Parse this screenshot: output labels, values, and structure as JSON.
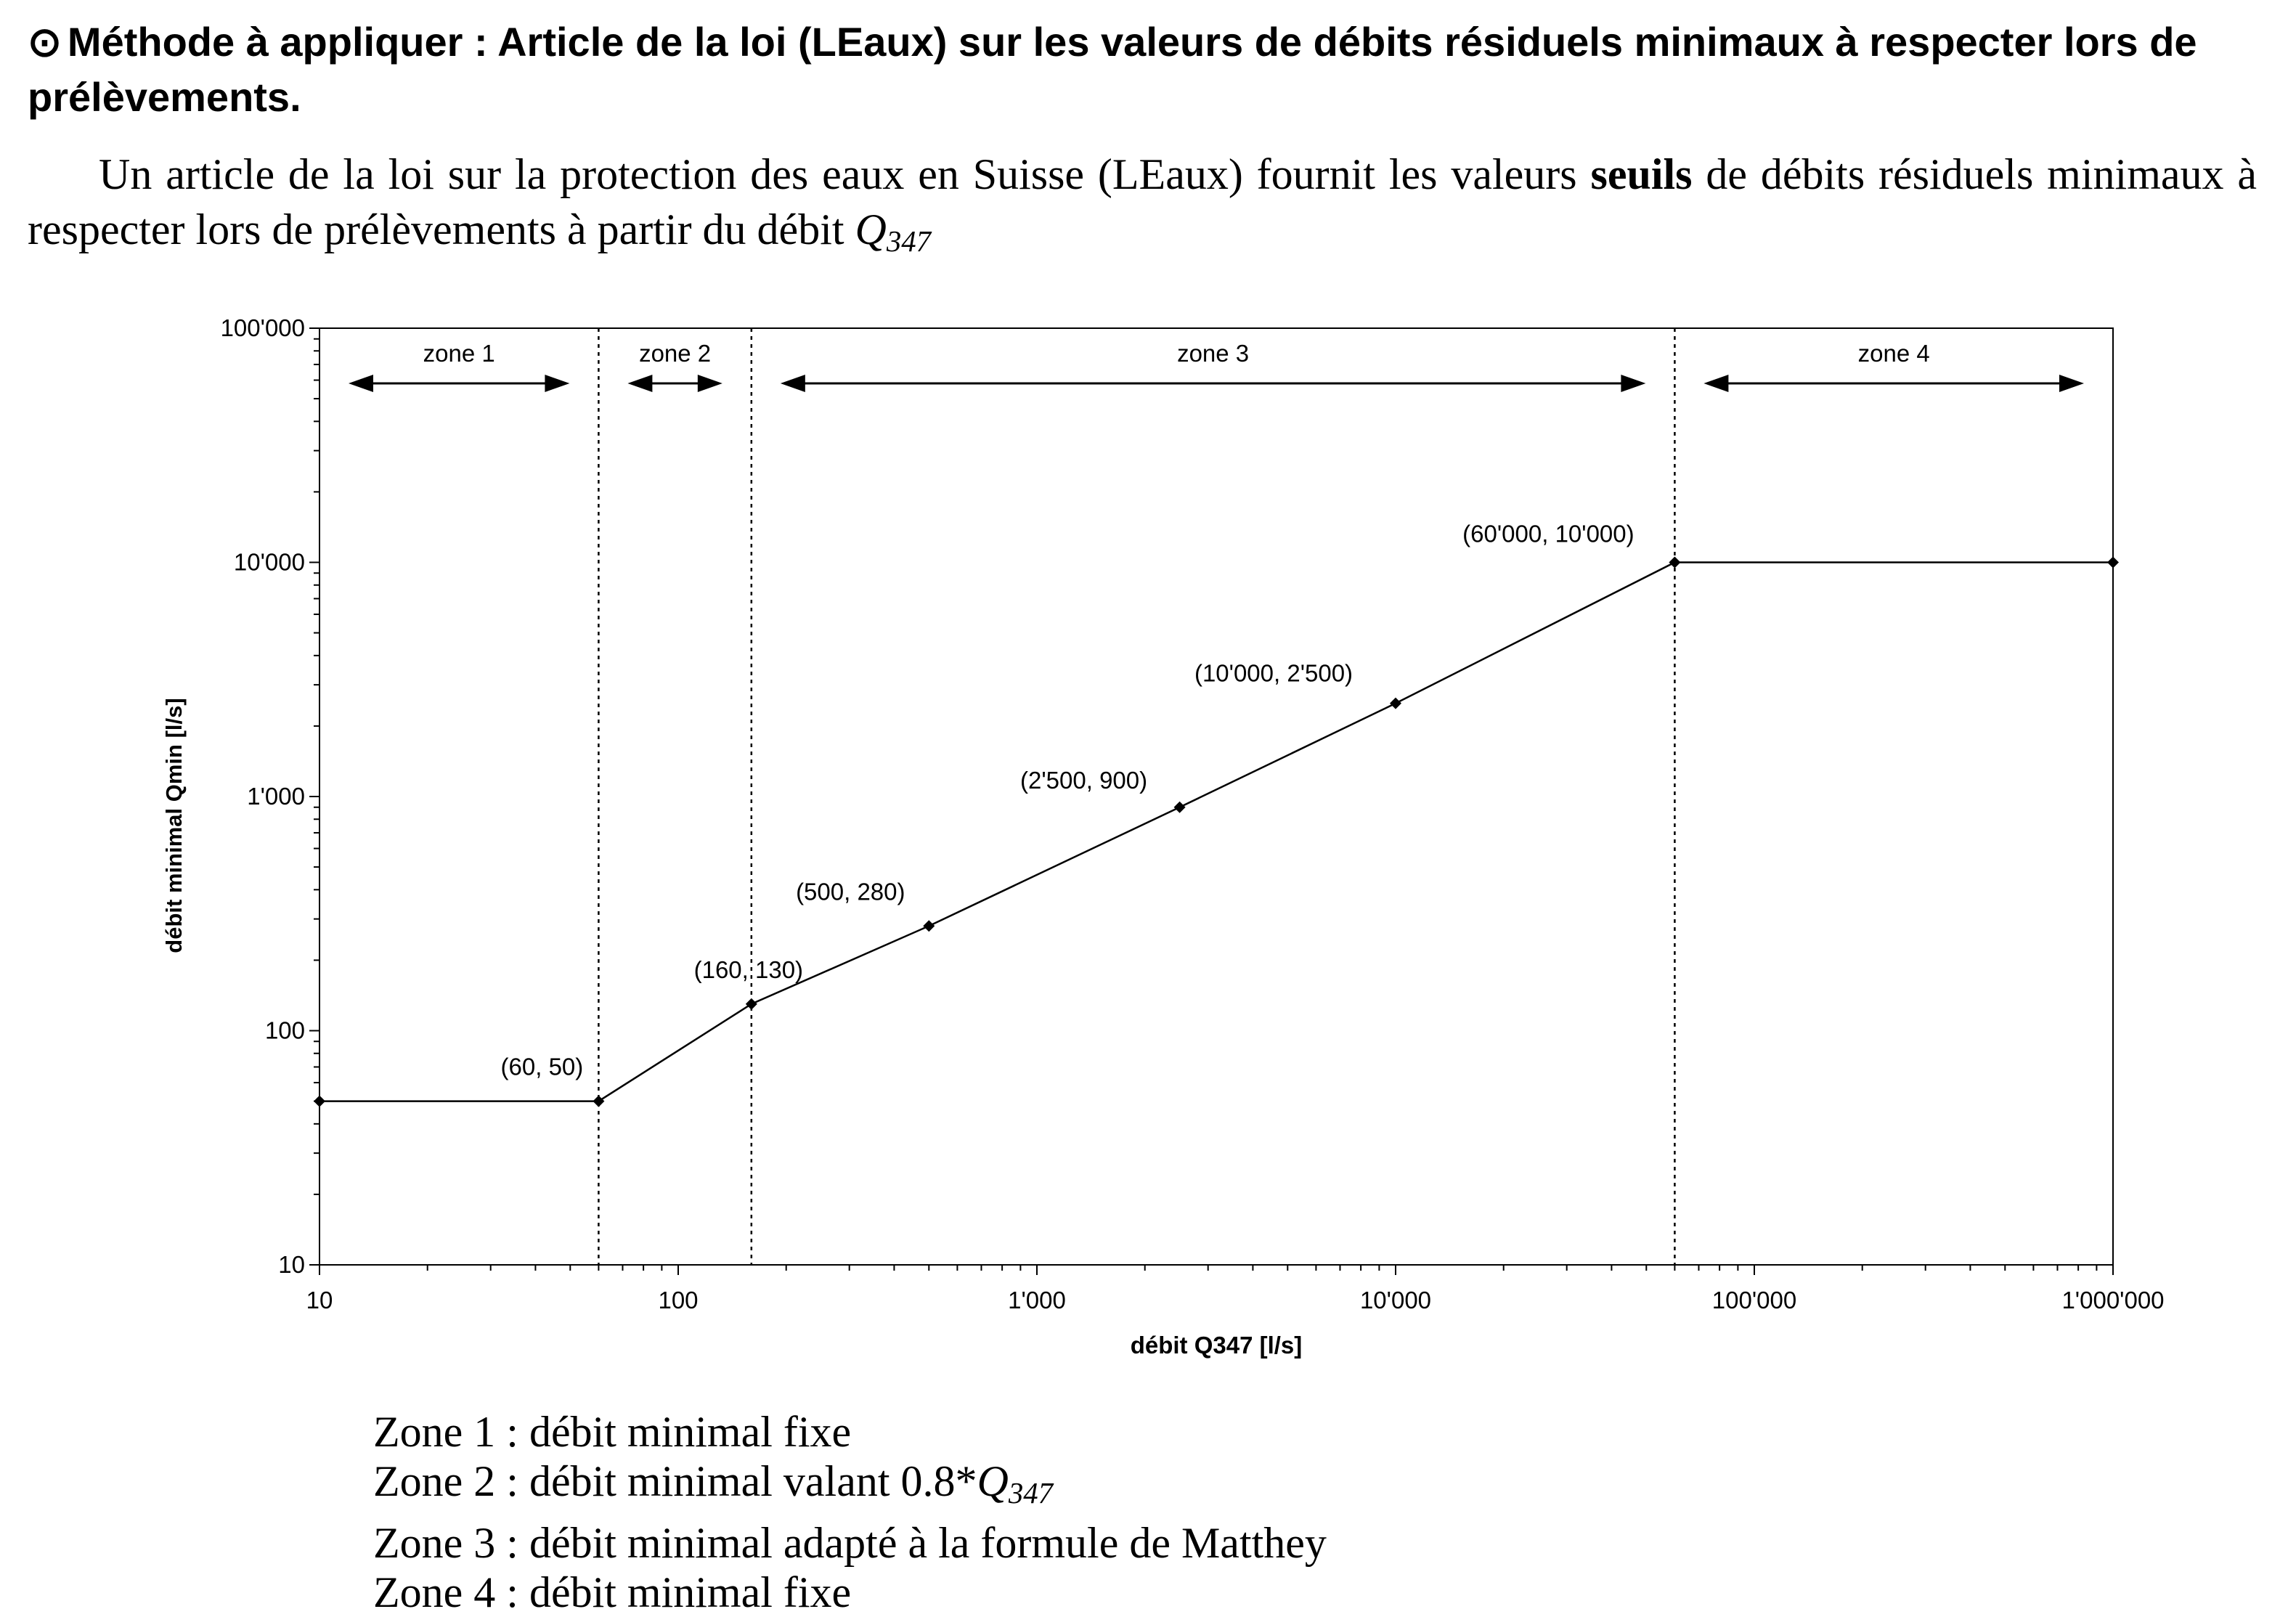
{
  "heading": {
    "bullet": "⊙",
    "text": "Méthode à appliquer : Article de la loi (LEaux) sur les valeurs de débits résiduels minimaux à respecter lors de prélèvements."
  },
  "intro": {
    "before_bold": "Un article de la loi sur la protection des eaux en Suisse (LEaux) fournit les valeurs ",
    "bold": "seuils",
    "after_bold": " de débits résiduels minimaux à respecter lors de prélèvements à partir du débit ",
    "symbol": "Q",
    "symbol_sub": "347"
  },
  "chart_data": {
    "type": "line",
    "xscale": "log",
    "yscale": "log",
    "xlim": [
      10,
      1000000
    ],
    "ylim": [
      10,
      100000
    ],
    "xlabel": "débit Q347 [l/s]",
    "ylabel": "débit minimal Qmin [l/s]",
    "x_ticks": [
      {
        "value": 10,
        "label": "10"
      },
      {
        "value": 100,
        "label": "100"
      },
      {
        "value": 1000,
        "label": "1'000"
      },
      {
        "value": 10000,
        "label": "10'000"
      },
      {
        "value": 100000,
        "label": "100'000"
      },
      {
        "value": 1000000,
        "label": "1'000'000"
      }
    ],
    "y_ticks": [
      {
        "value": 10,
        "label": "10"
      },
      {
        "value": 100,
        "label": "100"
      },
      {
        "value": 1000,
        "label": "1'000"
      },
      {
        "value": 10000,
        "label": "10'000"
      },
      {
        "value": 100000,
        "label": "100'000"
      }
    ],
    "grid": false,
    "series": [
      {
        "points": [
          {
            "x": 10,
            "y": 50,
            "label": ""
          },
          {
            "x": 60,
            "y": 50,
            "label": "(60, 50)"
          },
          {
            "x": 160,
            "y": 130,
            "label": "(160, 130)"
          },
          {
            "x": 500,
            "y": 280,
            "label": "(500, 280)"
          },
          {
            "x": 2500,
            "y": 900,
            "label": "(2'500, 900)"
          },
          {
            "x": 10000,
            "y": 2500,
            "label": "(10'000, 2'500)"
          },
          {
            "x": 60000,
            "y": 10000,
            "label": "(60'000, 10'000)"
          },
          {
            "x": 1000000,
            "y": 10000,
            "label": ""
          }
        ]
      }
    ],
    "zone_boundaries": [
      60,
      160,
      60000
    ],
    "zones": [
      {
        "label": "zone 1",
        "from": 10,
        "to": 60
      },
      {
        "label": "zone 2",
        "from": 60,
        "to": 160
      },
      {
        "label": "zone 3",
        "from": 160,
        "to": 60000
      },
      {
        "label": "zone 4",
        "from": 60000,
        "to": 1000000
      }
    ],
    "colors": {
      "line": "#000000",
      "axis": "#000000"
    }
  },
  "zone_descriptions": [
    {
      "prefix": "Zone 1 : débit minimal fixe",
      "q": "",
      "q_sub": ""
    },
    {
      "prefix": "Zone 2 : débit minimal valant 0.8*",
      "q": "Q",
      "q_sub": "347"
    },
    {
      "prefix": "Zone 3 : débit minimal adapté à la formule de Matthey",
      "q": "",
      "q_sub": ""
    },
    {
      "prefix": "Zone 4 : débit minimal fixe",
      "q": "",
      "q_sub": ""
    }
  ]
}
